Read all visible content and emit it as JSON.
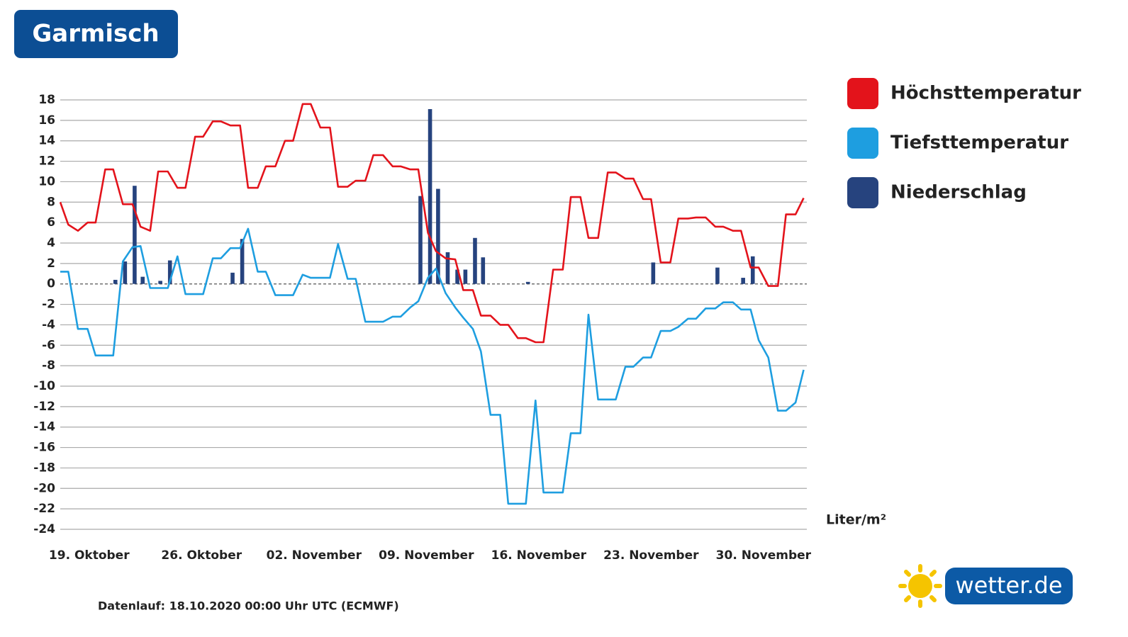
{
  "chart_data": {
    "type": "line",
    "title": "Garmisch",
    "y_unit": "Liter/m²",
    "footnote": "Datenlauf: 18.10.2020 00:00 Uhr UTC (ECMWF)",
    "logo": "wetter.de",
    "x": [
      -1.8,
      -1.3,
      -0.7,
      -0.1,
      0.4,
      1.0,
      1.5,
      2.1,
      2.7,
      3.2,
      3.8,
      4.3,
      4.9,
      5.5,
      6.0,
      6.6,
      7.1,
      7.7,
      8.2,
      8.8,
      9.4,
      9.9,
      10.5,
      11.0,
      11.6,
      12.2,
      12.7,
      13.3,
      13.8,
      14.4,
      15.0,
      15.5,
      16.1,
      16.6,
      17.2,
      17.7,
      18.3,
      18.9,
      19.4,
      20.0,
      20.5,
      21.1,
      21.6,
      22.2,
      22.8,
      23.3,
      23.9,
      24.4,
      25.0,
      25.6,
      26.1,
      26.7,
      27.2,
      27.8,
      28.3,
      28.9,
      29.5,
      30.0,
      30.6,
      31.1,
      31.7,
      32.3,
      32.8,
      33.4,
      33.9,
      34.5,
      35.0,
      35.6,
      36.2,
      36.7,
      37.3,
      37.8,
      38.4,
      39.0,
      39.5,
      40.1,
      40.6,
      41.2,
      41.7,
      42.3,
      42.9,
      43.4,
      44.0,
      44.5
    ],
    "series": [
      {
        "name": "Höchsttemperatur",
        "color": "#e3131b",
        "type": "line",
        "values": [
          8,
          5.8,
          5.2,
          6,
          6,
          11.2,
          11.2,
          7.8,
          7.8,
          5.6,
          5.2,
          11,
          11,
          9.4,
          9.4,
          14.4,
          14.4,
          15.9,
          15.9,
          15.5,
          15.5,
          9.4,
          9.4,
          11.5,
          11.5,
          14,
          14,
          17.6,
          17.6,
          15.3,
          15.3,
          9.5,
          9.5,
          10.1,
          10.1,
          12.6,
          12.6,
          11.5,
          11.5,
          11.2,
          11.2,
          5,
          3.2,
          2.5,
          2.4,
          -0.6,
          -0.6,
          -3.1,
          -3.1,
          -4,
          -4,
          -5.3,
          -5.3,
          -5.7,
          -5.7,
          1.4,
          1.4,
          8.5,
          8.5,
          4.5,
          4.5,
          10.9,
          10.9,
          10.3,
          10.3,
          8.3,
          8.3,
          2.1,
          2.1,
          6.4,
          6.4,
          6.5,
          6.5,
          5.6,
          5.6,
          5.2,
          5.2,
          1.6,
          1.6,
          -0.2,
          -0.2,
          6.8,
          6.8,
          8.4
        ]
      },
      {
        "name": "Tiefsttemperatur",
        "color": "#1e9ee0",
        "type": "line",
        "values": [
          1.2,
          1.2,
          -4.4,
          -4.4,
          -7,
          -7,
          -7,
          2.2,
          3.6,
          3.7,
          -0.4,
          -0.4,
          -0.4,
          2.7,
          -1,
          -1,
          -1,
          2.5,
          2.5,
          3.5,
          3.5,
          5.4,
          1.2,
          1.2,
          -1.1,
          -1.1,
          -1.1,
          0.9,
          0.6,
          0.6,
          0.6,
          3.9,
          0.5,
          0.5,
          -3.7,
          -3.7,
          -3.7,
          -3.2,
          -3.2,
          -2.3,
          -1.7,
          0.6,
          1.5,
          -0.9,
          -2.3,
          -3.3,
          -4.4,
          -6.6,
          -12.8,
          -12.8,
          -21.5,
          -21.5,
          -21.5,
          -11.4,
          -20.4,
          -20.4,
          -20.4,
          -14.6,
          -14.6,
          -3,
          -11.3,
          -11.3,
          -11.3,
          -8.1,
          -8.1,
          -7.2,
          -7.2,
          -4.6,
          -4.6,
          -4.2,
          -3.4,
          -3.4,
          -2.4,
          -2.4,
          -1.8,
          -1.8,
          -2.5,
          -2.5,
          -5.5,
          -7.2,
          -12.4,
          -12.4,
          -11.6,
          -8.4
        ]
      },
      {
        "name": "Niederschlag",
        "color": "#26437e",
        "type": "bar",
        "values": [
          null,
          null,
          null,
          null,
          null,
          null,
          0.4,
          2.2,
          9.6,
          0.7,
          null,
          0.3,
          2.3,
          null,
          null,
          null,
          null,
          null,
          null,
          1.1,
          4.4,
          null,
          null,
          null,
          null,
          null,
          null,
          null,
          null,
          null,
          null,
          null,
          null,
          null,
          null,
          null,
          null,
          null,
          null,
          null,
          8.6,
          17.1,
          9.3,
          3.1,
          1.4,
          1.4,
          4.5,
          2.6,
          null,
          null,
          null,
          null,
          0.2,
          null,
          null,
          null,
          null,
          null,
          null,
          null,
          null,
          null,
          null,
          null,
          null,
          null,
          2.1,
          null,
          null,
          null,
          null,
          null,
          null,
          1.6,
          null,
          null,
          0.6,
          2.7,
          null,
          null,
          null,
          null,
          null,
          null
        ]
      }
    ],
    "xlim": [
      -1.8,
      44.7
    ],
    "xticks": [
      {
        "value": 0,
        "label": "19. Oktober"
      },
      {
        "value": 7,
        "label": "26. Oktober"
      },
      {
        "value": 14,
        "label": "02. November"
      },
      {
        "value": 21,
        "label": "09. November"
      },
      {
        "value": 28,
        "label": "16. November"
      },
      {
        "value": 35,
        "label": "23. November"
      },
      {
        "value": 42,
        "label": "30. November"
      }
    ],
    "ylim": [
      -24,
      18
    ],
    "yticks": [
      18,
      16,
      14,
      12,
      10,
      8,
      6,
      4,
      2,
      0,
      -2,
      -4,
      -6,
      -8,
      -10,
      -12,
      -14,
      -16,
      -18,
      -20,
      -22,
      -24
    ],
    "grid": true,
    "legend": "right"
  }
}
